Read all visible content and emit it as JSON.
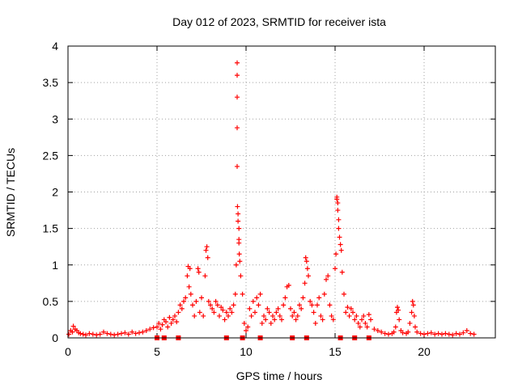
{
  "chart_data": {
    "type": "scatter",
    "title": "Day 012 of 2023, SRMTID for receiver ista",
    "xlabel": "GPS time / hours",
    "ylabel": "SRMTID / TECUs",
    "xlim": [
      0,
      24
    ],
    "ylim": [
      0,
      4
    ],
    "x_ticks": [
      0,
      5,
      10,
      15,
      20
    ],
    "x_tick_labels": [
      "0",
      "5",
      "10",
      "15",
      "20"
    ],
    "y_ticks": [
      0,
      0.5,
      1,
      1.5,
      2,
      2.5,
      3,
      3.5,
      4
    ],
    "y_tick_labels": [
      "0",
      "0.5",
      "1",
      "1.5",
      "2",
      "2.5",
      "3",
      "3.5",
      "4"
    ],
    "grid": true,
    "marker": "+",
    "series_color": "#ff0000",
    "series": [
      {
        "name": "SRMTID",
        "x": [
          0.05,
          0.15,
          0.25,
          0.3,
          0.4,
          0.5,
          0.6,
          0.7,
          0.85,
          1.0,
          1.2,
          1.4,
          1.6,
          1.8,
          2.0,
          2.2,
          2.4,
          2.6,
          2.8,
          3.0,
          3.2,
          3.4,
          3.6,
          3.8,
          4.0,
          4.2,
          4.4,
          4.6,
          4.8,
          5.0,
          5.1,
          5.2,
          5.3,
          5.4,
          5.5,
          5.6,
          5.7,
          5.8,
          5.9,
          6.0,
          6.1,
          6.2,
          6.3,
          6.4,
          6.5,
          6.6,
          6.7,
          6.75,
          6.8,
          6.85,
          6.9,
          7.0,
          7.1,
          7.2,
          7.3,
          7.35,
          7.4,
          7.5,
          7.6,
          7.7,
          7.75,
          7.8,
          7.85,
          7.9,
          8.0,
          8.1,
          8.2,
          8.3,
          8.4,
          8.5,
          8.6,
          8.7,
          8.8,
          8.9,
          9.0,
          9.1,
          9.2,
          9.3,
          9.4,
          9.45,
          9.5,
          9.5,
          9.5,
          9.5,
          9.5,
          9.52,
          9.55,
          9.55,
          9.6,
          9.6,
          9.6,
          9.62,
          9.65,
          9.7,
          9.8,
          9.9,
          10.0,
          10.1,
          10.2,
          10.3,
          10.4,
          10.5,
          10.6,
          10.7,
          10.8,
          10.9,
          11.0,
          11.1,
          11.2,
          11.3,
          11.4,
          11.5,
          11.6,
          11.7,
          11.8,
          11.9,
          12.0,
          12.1,
          12.2,
          12.3,
          12.4,
          12.5,
          12.6,
          12.7,
          12.8,
          12.9,
          13.0,
          13.1,
          13.2,
          13.3,
          13.35,
          13.4,
          13.45,
          13.5,
          13.6,
          13.7,
          13.8,
          13.9,
          14.0,
          14.1,
          14.2,
          14.3,
          14.4,
          14.5,
          14.6,
          14.7,
          14.8,
          14.9,
          15.0,
          15.05,
          15.1,
          15.1,
          15.15,
          15.15,
          15.2,
          15.2,
          15.25,
          15.3,
          15.35,
          15.4,
          15.5,
          15.6,
          15.7,
          15.8,
          15.9,
          16.0,
          16.1,
          16.2,
          16.3,
          16.4,
          16.5,
          16.6,
          16.7,
          16.8,
          16.9,
          17.0,
          17.2,
          17.4,
          17.6,
          17.8,
          18.0,
          18.2,
          18.3,
          18.4,
          18.45,
          18.5,
          18.55,
          18.6,
          18.7,
          18.8,
          19.0,
          19.1,
          19.2,
          19.3,
          19.35,
          19.4,
          19.45,
          19.5,
          19.6,
          19.8,
          20.0,
          20.2,
          20.4,
          20.6,
          20.8,
          21.0,
          21.2,
          21.4,
          21.6,
          21.8,
          22.0,
          22.2,
          22.4,
          22.6,
          22.8
        ],
        "y": [
          0.05,
          0.1,
          0.08,
          0.16,
          0.12,
          0.1,
          0.07,
          0.06,
          0.05,
          0.04,
          0.06,
          0.05,
          0.04,
          0.05,
          0.08,
          0.06,
          0.05,
          0.04,
          0.05,
          0.06,
          0.07,
          0.05,
          0.08,
          0.06,
          0.07,
          0.08,
          0.1,
          0.12,
          0.14,
          0.15,
          0.2,
          0.12,
          0.18,
          0.25,
          0.22,
          0.15,
          0.28,
          0.2,
          0.25,
          0.3,
          0.22,
          0.35,
          0.45,
          0.4,
          0.5,
          0.55,
          0.85,
          0.98,
          0.7,
          0.95,
          0.6,
          0.45,
          0.3,
          0.5,
          0.95,
          0.9,
          0.35,
          0.55,
          0.3,
          0.85,
          1.2,
          1.25,
          1.1,
          0.5,
          0.45,
          0.4,
          0.35,
          0.5,
          0.45,
          0.3,
          0.42,
          0.38,
          0.25,
          0.35,
          0.3,
          0.4,
          0.35,
          0.45,
          0.6,
          1.0,
          3.77,
          3.6,
          3.3,
          2.88,
          2.35,
          1.8,
          1.7,
          1.6,
          1.5,
          1.35,
          1.3,
          1.15,
          1.05,
          0.85,
          0.6,
          0.2,
          0.1,
          0.15,
          0.4,
          0.3,
          0.5,
          0.35,
          0.55,
          0.45,
          0.6,
          0.2,
          0.3,
          0.25,
          0.4,
          0.35,
          0.2,
          0.3,
          0.25,
          0.35,
          0.4,
          0.3,
          0.25,
          0.45,
          0.55,
          0.7,
          0.72,
          0.4,
          0.3,
          0.35,
          0.25,
          0.3,
          0.45,
          0.4,
          0.55,
          0.75,
          1.1,
          1.05,
          0.95,
          0.85,
          0.5,
          0.45,
          0.35,
          0.2,
          0.45,
          0.55,
          0.3,
          0.25,
          0.6,
          0.8,
          0.85,
          0.45,
          0.3,
          0.25,
          0.95,
          1.15,
          1.93,
          1.9,
          1.85,
          1.75,
          1.62,
          1.5,
          1.38,
          1.28,
          1.2,
          0.9,
          0.6,
          0.35,
          0.42,
          0.3,
          0.4,
          0.35,
          0.25,
          0.3,
          0.2,
          0.15,
          0.25,
          0.3,
          0.2,
          0.15,
          0.32,
          0.25,
          0.12,
          0.1,
          0.08,
          0.06,
          0.05,
          0.06,
          0.08,
          0.15,
          0.35,
          0.42,
          0.38,
          0.25,
          0.1,
          0.07,
          0.06,
          0.08,
          0.2,
          0.35,
          0.5,
          0.45,
          0.3,
          0.15,
          0.08,
          0.06,
          0.05,
          0.06,
          0.07,
          0.05,
          0.06,
          0.05,
          0.06,
          0.05,
          0.04,
          0.06,
          0.05,
          0.07,
          0.1,
          0.06,
          0.05
        ],
        "zero_markers_x": [
          5.0,
          5.4,
          6.2,
          8.9,
          9.8,
          10.8,
          12.6,
          13.4,
          15.3,
          16.1,
          16.9
        ]
      }
    ]
  }
}
